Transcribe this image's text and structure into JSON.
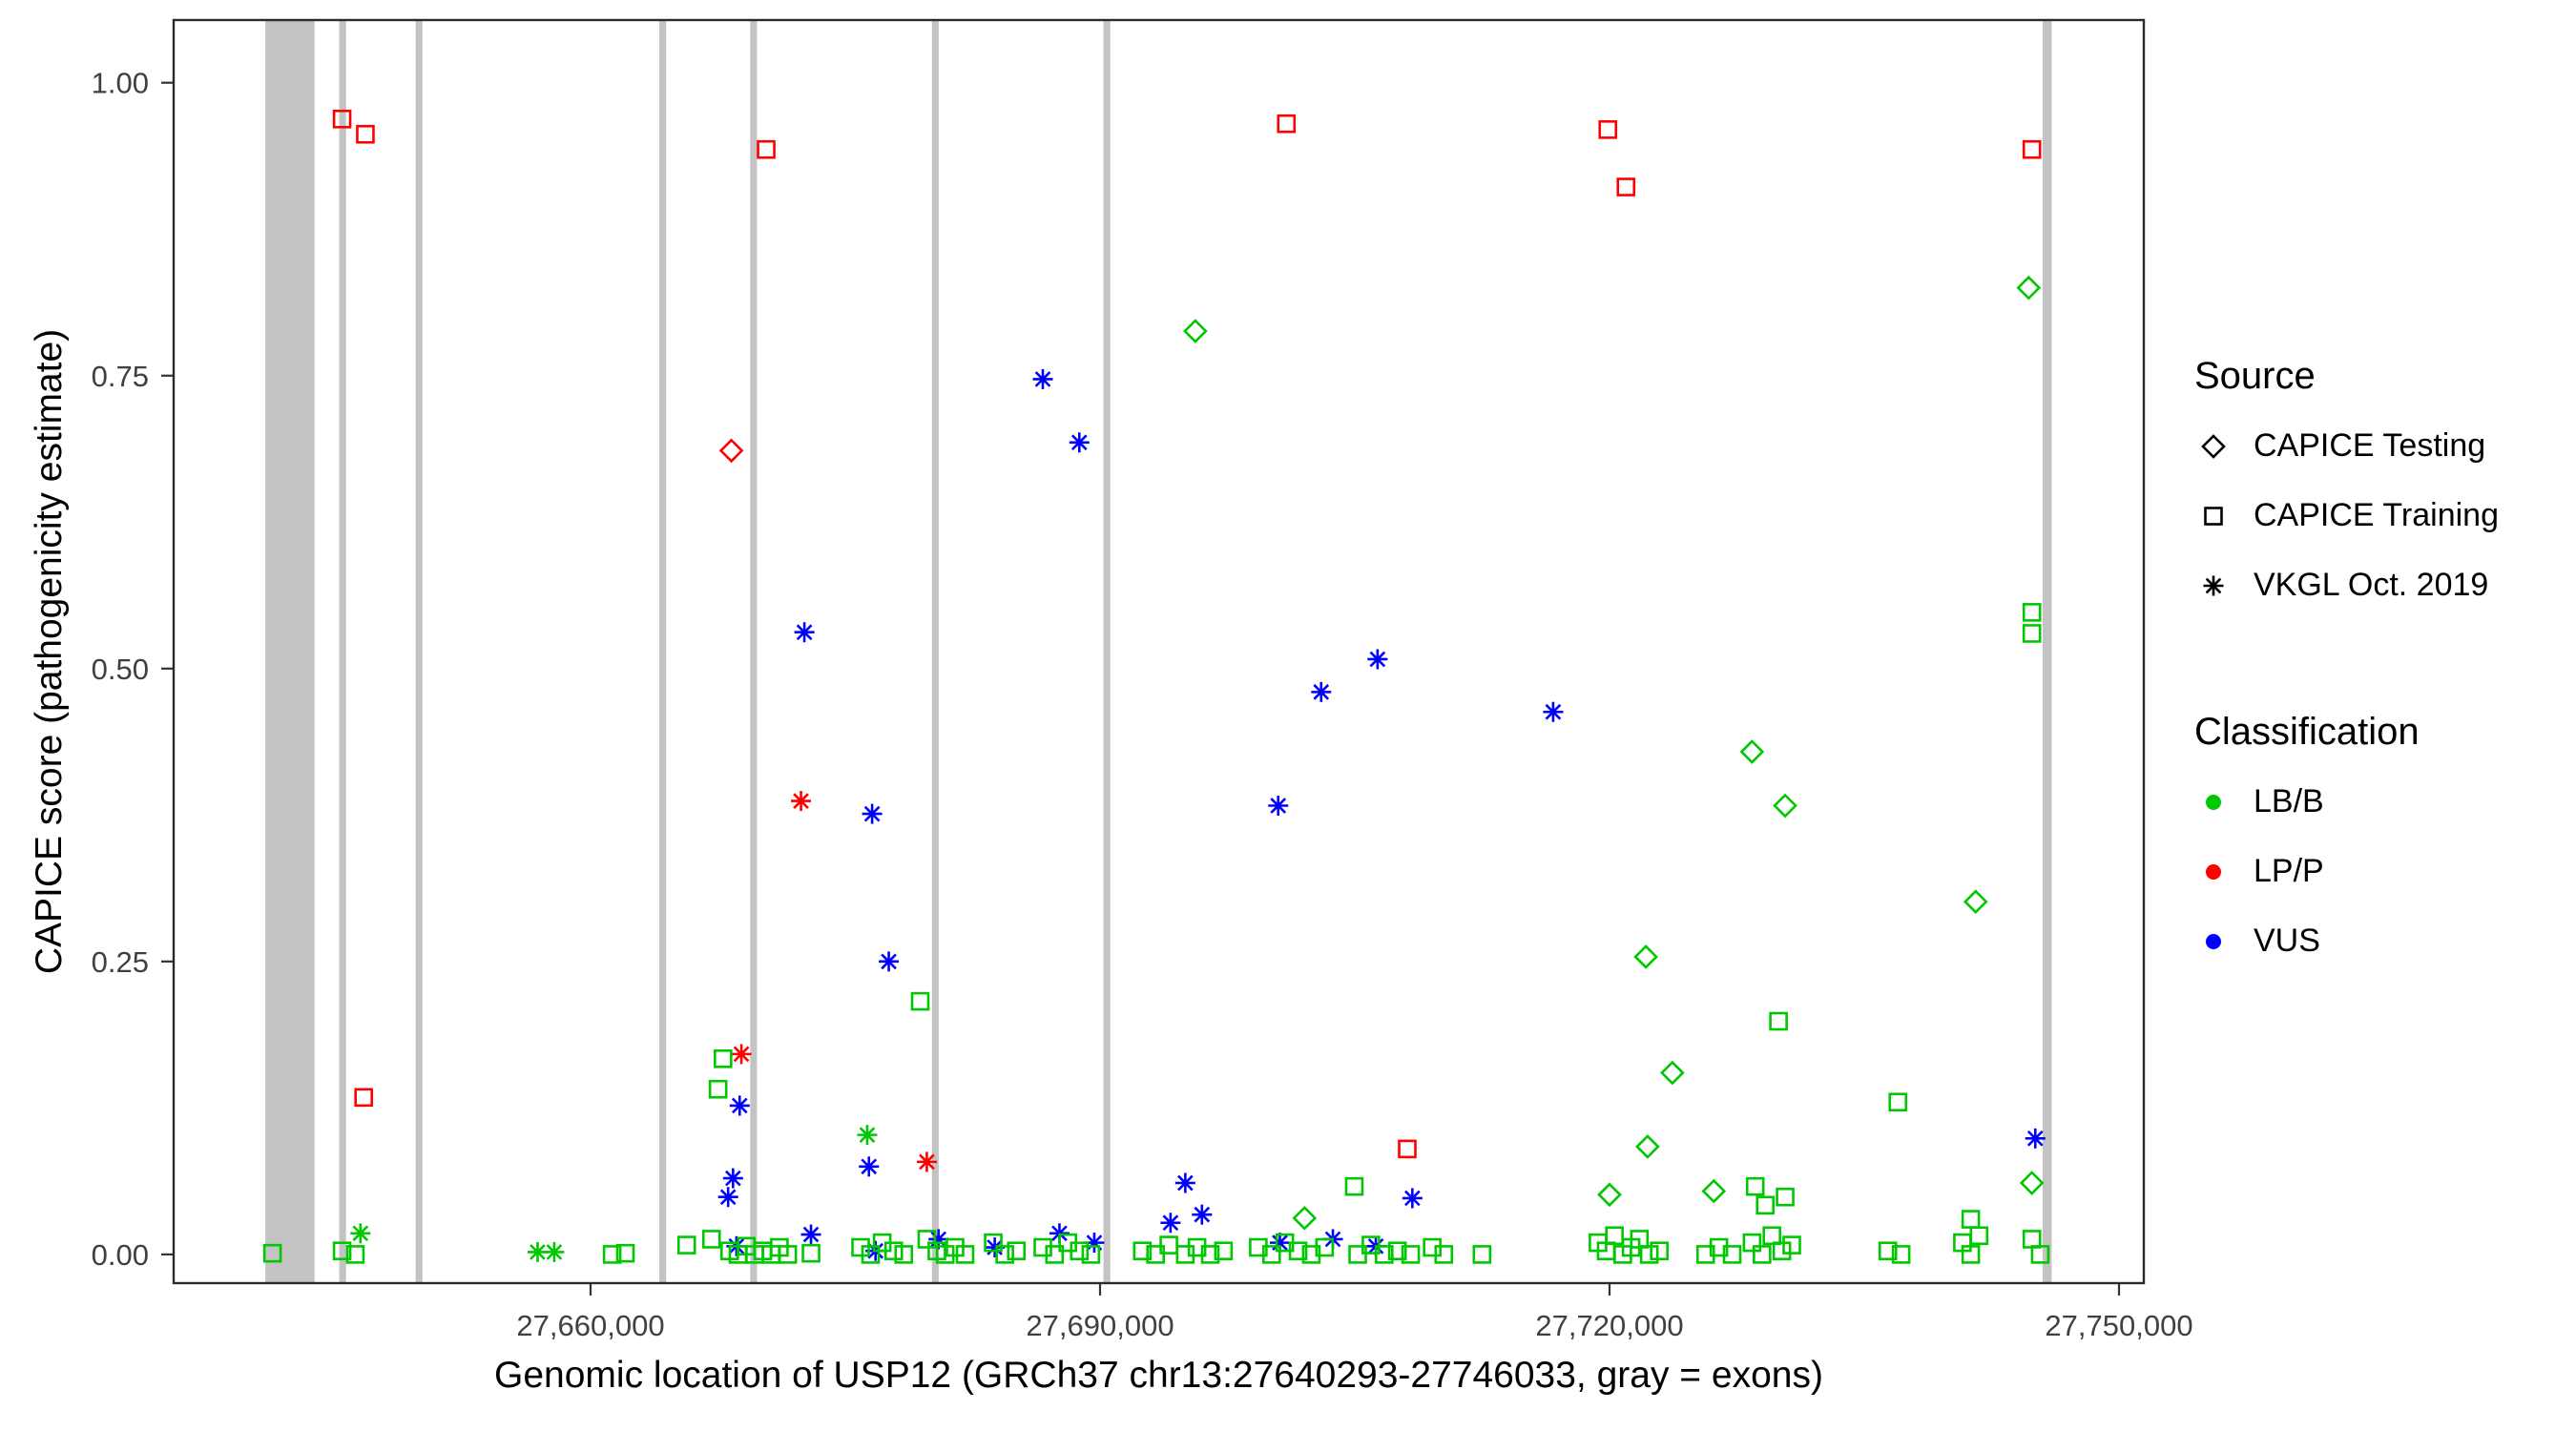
{
  "legend": {
    "source": {
      "title": "Source",
      "items": [
        {
          "label": "CAPICE Testing",
          "shape": "diamond"
        },
        {
          "label": "CAPICE Training",
          "shape": "square"
        },
        {
          "label": "VKGL Oct. 2019",
          "shape": "asterisk"
        }
      ]
    },
    "classification": {
      "title": "Classification",
      "items": [
        {
          "label": "LB/B",
          "color": "#00c800"
        },
        {
          "label": "LP/P",
          "color": "#ff0000"
        },
        {
          "label": "VUS",
          "color": "#0000ff"
        }
      ]
    }
  },
  "chart_data": {
    "type": "scatter",
    "title": "",
    "xlabel": "Genomic location of USP12 (GRCh37 chr13:27640293-27746033, gray = exons)",
    "ylabel": "CAPICE score (pathogenicity estimate)",
    "xlim": [
      27635450,
      27751460
    ],
    "ylim": [
      -0.0245,
      1.0535
    ],
    "grid": false,
    "legend_position": "right",
    "x_ticks": [
      {
        "value": 27660000,
        "label": "27,660,000"
      },
      {
        "value": 27690000,
        "label": "27,690,000"
      },
      {
        "value": 27720000,
        "label": "27,720,000"
      },
      {
        "value": 27750000,
        "label": "27,750,000"
      }
    ],
    "y_ticks": [
      {
        "value": 0.0,
        "label": "0.00"
      },
      {
        "value": 0.25,
        "label": "0.25"
      },
      {
        "value": 0.5,
        "label": "0.50"
      },
      {
        "value": 0.75,
        "label": "0.75"
      },
      {
        "value": 1.0,
        "label": "1.00"
      }
    ],
    "exon_color": "#c3c3c3",
    "exons": [
      [
        27640850,
        27643750
      ],
      [
        27645200,
        27645600
      ],
      [
        27649700,
        27650100
      ],
      [
        27664050,
        27664450
      ],
      [
        27669400,
        27669800
      ],
      [
        27680100,
        27680500
      ],
      [
        27690200,
        27690600
      ],
      [
        27745500,
        27746033
      ]
    ],
    "colors": {
      "LB/B": "#00c800",
      "LP/P": "#ff0000",
      "VUS": "#0000ff"
    },
    "shapes": {
      "testing": "diamond",
      "training": "square",
      "vkgl": "asterisk"
    },
    "points_format": [
      "genomic_position",
      "capice_score",
      "source",
      "classification"
    ],
    "points": [
      [
        27645370,
        0.969,
        "training",
        "LP/P"
      ],
      [
        27646740,
        0.956,
        "training",
        "LP/P"
      ],
      [
        27646640,
        0.134,
        "training",
        "LP/P"
      ],
      [
        27670340,
        0.943,
        "training",
        "LP/P"
      ],
      [
        27700970,
        0.965,
        "training",
        "LP/P"
      ],
      [
        27719900,
        0.96,
        "training",
        "LP/P"
      ],
      [
        27720970,
        0.911,
        "training",
        "LP/P"
      ],
      [
        27744870,
        0.943,
        "training",
        "LP/P"
      ],
      [
        27708090,
        0.09,
        "training",
        "LP/P"
      ],
      [
        27668290,
        0.686,
        "testing",
        "LP/P"
      ],
      [
        27668880,
        0.171,
        "vkgl",
        "LP/P"
      ],
      [
        27672390,
        0.387,
        "vkgl",
        "LP/P"
      ],
      [
        27679800,
        0.079,
        "vkgl",
        "LP/P"
      ],
      [
        27686630,
        0.747,
        "vkgl",
        "VUS"
      ],
      [
        27688780,
        0.693,
        "vkgl",
        "VUS"
      ],
      [
        27672590,
        0.531,
        "vkgl",
        "VUS"
      ],
      [
        27676580,
        0.376,
        "vkgl",
        "VUS"
      ],
      [
        27677560,
        0.25,
        "vkgl",
        "VUS"
      ],
      [
        27676390,
        0.075,
        "vkgl",
        "VUS"
      ],
      [
        27668780,
        0.127,
        "vkgl",
        "VUS"
      ],
      [
        27668390,
        0.065,
        "vkgl",
        "VUS"
      ],
      [
        27668100,
        0.049,
        "vkgl",
        "VUS"
      ],
      [
        27700490,
        0.383,
        "vkgl",
        "VUS"
      ],
      [
        27703020,
        0.48,
        "vkgl",
        "VUS"
      ],
      [
        27706340,
        0.508,
        "vkgl",
        "VUS"
      ],
      [
        27716680,
        0.463,
        "vkgl",
        "VUS"
      ],
      [
        27695020,
        0.061,
        "vkgl",
        "VUS"
      ],
      [
        27696000,
        0.034,
        "vkgl",
        "VUS"
      ],
      [
        27694150,
        0.027,
        "vkgl",
        "VUS"
      ],
      [
        27708390,
        0.048,
        "vkgl",
        "VUS"
      ],
      [
        27745070,
        0.099,
        "vkgl",
        "VUS"
      ],
      [
        27668590,
        0.007,
        "vkgl",
        "VUS"
      ],
      [
        27672980,
        0.017,
        "vkgl",
        "VUS"
      ],
      [
        27676780,
        0.003,
        "vkgl",
        "VUS"
      ],
      [
        27680490,
        0.013,
        "vkgl",
        "VUS"
      ],
      [
        27683800,
        0.006,
        "vkgl",
        "VUS"
      ],
      [
        27687610,
        0.018,
        "vkgl",
        "VUS"
      ],
      [
        27689660,
        0.01,
        "vkgl",
        "VUS"
      ],
      [
        27700590,
        0.01,
        "vkgl",
        "VUS"
      ],
      [
        27703710,
        0.013,
        "vkgl",
        "VUS"
      ],
      [
        27706240,
        0.007,
        "vkgl",
        "VUS"
      ],
      [
        27695610,
        0.788,
        "testing",
        "LB/B"
      ],
      [
        27744680,
        0.825,
        "testing",
        "LB/B"
      ],
      [
        27728390,
        0.429,
        "testing",
        "LB/B"
      ],
      [
        27730340,
        0.383,
        "testing",
        "LB/B"
      ],
      [
        27741560,
        0.301,
        "testing",
        "LB/B"
      ],
      [
        27722140,
        0.254,
        "testing",
        "LB/B"
      ],
      [
        27723700,
        0.155,
        "testing",
        "LB/B"
      ],
      [
        27722240,
        0.092,
        "testing",
        "LB/B"
      ],
      [
        27720000,
        0.051,
        "testing",
        "LB/B"
      ],
      [
        27726140,
        0.054,
        "testing",
        "LB/B"
      ],
      [
        27744870,
        0.061,
        "testing",
        "LB/B"
      ],
      [
        27702040,
        0.031,
        "testing",
        "LB/B"
      ],
      [
        27646450,
        0.018,
        "vkgl",
        "LB/B"
      ],
      [
        27676290,
        0.102,
        "vkgl",
        "LB/B"
      ],
      [
        27656880,
        0.002,
        "vkgl",
        "LB/B"
      ],
      [
        27657860,
        0.002,
        "vkgl",
        "LB/B"
      ],
      [
        27679410,
        0.216,
        "training",
        "LB/B"
      ],
      [
        27667800,
        0.167,
        "training",
        "LB/B"
      ],
      [
        27667510,
        0.141,
        "training",
        "LB/B"
      ],
      [
        27744870,
        0.548,
        "training",
        "LB/B"
      ],
      [
        27744870,
        0.53,
        "training",
        "LB/B"
      ],
      [
        27729950,
        0.199,
        "training",
        "LB/B"
      ],
      [
        27736980,
        0.13,
        "training",
        "LB/B"
      ],
      [
        27704970,
        0.058,
        "training",
        "LB/B"
      ],
      [
        27728580,
        0.058,
        "training",
        "LB/B"
      ],
      [
        27729170,
        0.042,
        "training",
        "LB/B"
      ],
      [
        27730340,
        0.049,
        "training",
        "LB/B"
      ],
      [
        27741270,
        0.03,
        "training",
        "LB/B"
      ],
      [
        27641270,
        0.001,
        "training",
        "LB/B"
      ],
      [
        27645370,
        0.003,
        "training",
        "LB/B"
      ],
      [
        27646150,
        0.0,
        "training",
        "LB/B"
      ],
      [
        27661270,
        0.0,
        "training",
        "LB/B"
      ],
      [
        27662050,
        0.001,
        "training",
        "LB/B"
      ],
      [
        27665660,
        0.008,
        "training",
        "LB/B"
      ],
      [
        27667120,
        0.013,
        "training",
        "LB/B"
      ],
      [
        27668190,
        0.003,
        "training",
        "LB/B"
      ],
      [
        27668680,
        0.0,
        "training",
        "LB/B"
      ],
      [
        27669170,
        0.007,
        "training",
        "LB/B"
      ],
      [
        27669660,
        0.0,
        "training",
        "LB/B"
      ],
      [
        27670140,
        0.003,
        "training",
        "LB/B"
      ],
      [
        27670630,
        0.0,
        "training",
        "LB/B"
      ],
      [
        27671120,
        0.006,
        "training",
        "LB/B"
      ],
      [
        27671610,
        0.0,
        "training",
        "LB/B"
      ],
      [
        27672980,
        0.001,
        "training",
        "LB/B"
      ],
      [
        27675900,
        0.006,
        "training",
        "LB/B"
      ],
      [
        27676490,
        0.0,
        "training",
        "LB/B"
      ],
      [
        27677170,
        0.01,
        "training",
        "LB/B"
      ],
      [
        27677850,
        0.003,
        "training",
        "LB/B"
      ],
      [
        27678440,
        0.0,
        "training",
        "LB/B"
      ],
      [
        27679800,
        0.013,
        "training",
        "LB/B"
      ],
      [
        27680390,
        0.003,
        "training",
        "LB/B"
      ],
      [
        27680880,
        0.0,
        "training",
        "LB/B"
      ],
      [
        27681460,
        0.006,
        "training",
        "LB/B"
      ],
      [
        27682050,
        0.0,
        "training",
        "LB/B"
      ],
      [
        27683710,
        0.01,
        "training",
        "LB/B"
      ],
      [
        27684390,
        0.0,
        "training",
        "LB/B"
      ],
      [
        27685070,
        0.003,
        "training",
        "LB/B"
      ],
      [
        27686630,
        0.006,
        "training",
        "LB/B"
      ],
      [
        27687320,
        0.0,
        "training",
        "LB/B"
      ],
      [
        27688100,
        0.01,
        "training",
        "LB/B"
      ],
      [
        27688780,
        0.003,
        "training",
        "LB/B"
      ],
      [
        27689460,
        0.0,
        "training",
        "LB/B"
      ],
      [
        27692490,
        0.003,
        "training",
        "LB/B"
      ],
      [
        27693270,
        0.0,
        "training",
        "LB/B"
      ],
      [
        27694050,
        0.008,
        "training",
        "LB/B"
      ],
      [
        27695020,
        0.0,
        "training",
        "LB/B"
      ],
      [
        27695710,
        0.006,
        "training",
        "LB/B"
      ],
      [
        27696490,
        0.0,
        "training",
        "LB/B"
      ],
      [
        27697270,
        0.003,
        "training",
        "LB/B"
      ],
      [
        27699320,
        0.006,
        "training",
        "LB/B"
      ],
      [
        27700100,
        0.0,
        "training",
        "LB/B"
      ],
      [
        27700880,
        0.01,
        "training",
        "LB/B"
      ],
      [
        27701660,
        0.003,
        "training",
        "LB/B"
      ],
      [
        27702440,
        0.0,
        "training",
        "LB/B"
      ],
      [
        27703220,
        0.006,
        "training",
        "LB/B"
      ],
      [
        27705170,
        0.0,
        "training",
        "LB/B"
      ],
      [
        27705950,
        0.008,
        "training",
        "LB/B"
      ],
      [
        27706730,
        0.0,
        "training",
        "LB/B"
      ],
      [
        27707510,
        0.003,
        "training",
        "LB/B"
      ],
      [
        27708290,
        0.0,
        "training",
        "LB/B"
      ],
      [
        27709560,
        0.006,
        "training",
        "LB/B"
      ],
      [
        27710240,
        0.0,
        "training",
        "LB/B"
      ],
      [
        27712490,
        0.0,
        "training",
        "LB/B"
      ],
      [
        27719320,
        0.01,
        "training",
        "LB/B"
      ],
      [
        27719800,
        0.003,
        "training",
        "LB/B"
      ],
      [
        27720290,
        0.016,
        "training",
        "LB/B"
      ],
      [
        27720780,
        0.0,
        "training",
        "LB/B"
      ],
      [
        27721270,
        0.006,
        "training",
        "LB/B"
      ],
      [
        27721760,
        0.013,
        "training",
        "LB/B"
      ],
      [
        27722340,
        0.0,
        "training",
        "LB/B"
      ],
      [
        27722930,
        0.003,
        "training",
        "LB/B"
      ],
      [
        27725660,
        0.0,
        "training",
        "LB/B"
      ],
      [
        27726440,
        0.006,
        "training",
        "LB/B"
      ],
      [
        27727220,
        0.0,
        "training",
        "LB/B"
      ],
      [
        27728390,
        0.01,
        "training",
        "LB/B"
      ],
      [
        27728980,
        0.0,
        "training",
        "LB/B"
      ],
      [
        27729560,
        0.016,
        "training",
        "LB/B"
      ],
      [
        27730150,
        0.003,
        "training",
        "LB/B"
      ],
      [
        27730730,
        0.008,
        "training",
        "LB/B"
      ],
      [
        27736390,
        0.003,
        "training",
        "LB/B"
      ],
      [
        27737170,
        0.0,
        "training",
        "LB/B"
      ],
      [
        27740780,
        0.01,
        "training",
        "LB/B"
      ],
      [
        27741270,
        0.0,
        "training",
        "LB/B"
      ],
      [
        27741760,
        0.016,
        "training",
        "LB/B"
      ],
      [
        27744870,
        0.013,
        "training",
        "LB/B"
      ],
      [
        27745360,
        0.0,
        "training",
        "LB/B"
      ]
    ]
  }
}
